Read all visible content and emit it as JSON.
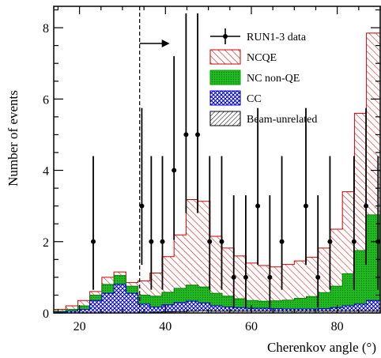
{
  "chart_data": {
    "type": "histogram",
    "xlabel": "Cherenkov angle (°)",
    "ylabel": "Number of events",
    "xlim": [
      14,
      90
    ],
    "ylim": [
      0,
      8.6
    ],
    "x_ticks": [
      20,
      40,
      60,
      80
    ],
    "y_ticks": [
      0,
      2,
      4,
      6,
      8
    ],
    "bin_edges": [
      14,
      16.8,
      19.6,
      22.4,
      25.2,
      28,
      30.8,
      33.6,
      36.4,
      39.2,
      42,
      44.8,
      47.6,
      50.4,
      53.2,
      56,
      58.8,
      61.6,
      64.4,
      67.2,
      70,
      72.8,
      75.6,
      78.4,
      81.2,
      84,
      86.8,
      90
    ],
    "cut_line": {
      "x": 34,
      "direction": "right"
    },
    "stack": [
      {
        "name": "Beam-unrelated",
        "color": "#000000",
        "pattern": "diag-black",
        "values": [
          0,
          0,
          0,
          0,
          0,
          0,
          0,
          0,
          0.02,
          0.03,
          0.04,
          0.05,
          0.06,
          0.05,
          0.05,
          0.05,
          0.05,
          0.05,
          0.05,
          0.05,
          0.05,
          0.05,
          0.05,
          0.05,
          0.05,
          0.05,
          0.05
        ]
      },
      {
        "name": "CC",
        "color": "#0000cc",
        "pattern": "crosshatch-blue",
        "values": [
          0.02,
          0.05,
          0.1,
          0.35,
          0.55,
          0.8,
          0.55,
          0.25,
          0.15,
          0.2,
          0.25,
          0.28,
          0.22,
          0.15,
          0.12,
          0.1,
          0.08,
          0.08,
          0.07,
          0.06,
          0.06,
          0.06,
          0.07,
          0.1,
          0.15,
          0.2,
          0.3
        ]
      },
      {
        "name": "NC non-QE",
        "color": "#00a000",
        "pattern": "dots-green",
        "values": [
          0.03,
          0.05,
          0.1,
          0.15,
          0.25,
          0.25,
          0.2,
          0.25,
          0.3,
          0.35,
          0.4,
          0.45,
          0.45,
          0.35,
          0.3,
          0.25,
          0.22,
          0.2,
          0.22,
          0.25,
          0.3,
          0.35,
          0.45,
          0.6,
          0.9,
          1.5,
          2.4
        ]
      },
      {
        "name": "NCQE",
        "color": "#cc0000",
        "pattern": "diag-red",
        "values": [
          0.05,
          0.1,
          0.15,
          0.1,
          0.2,
          0.1,
          0.1,
          0.4,
          0.65,
          1.0,
          1.5,
          2.4,
          2.4,
          1.6,
          1.35,
          1.2,
          1.05,
          1.0,
          0.95,
          1.0,
          1.05,
          1.1,
          1.25,
          1.6,
          2.3,
          3.85,
          5.1
        ]
      }
    ],
    "data_series": {
      "name": "RUN1-3 data",
      "points": [
        {
          "x": 23.2,
          "y": 2,
          "err": [
            1.35,
            2.4
          ]
        },
        {
          "x": 34.5,
          "y": 3,
          "err": [
            1.65,
            2.75
          ]
        },
        {
          "x": 36.7,
          "y": 2,
          "err": [
            1.35,
            2.4
          ]
        },
        {
          "x": 39.3,
          "y": 2,
          "err": [
            1.35,
            2.4
          ]
        },
        {
          "x": 42,
          "y": 4,
          "err": [
            1.95,
            3.2
          ]
        },
        {
          "x": 44.8,
          "y": 5,
          "err": [
            2.2,
            3.4
          ]
        },
        {
          "x": 47.5,
          "y": 5,
          "err": [
            2.2,
            3.4
          ]
        },
        {
          "x": 50.3,
          "y": 2,
          "err": [
            1.35,
            2.4
          ]
        },
        {
          "x": 53.1,
          "y": 2,
          "err": [
            1.35,
            2.4
          ]
        },
        {
          "x": 55.9,
          "y": 1,
          "err": [
            0.85,
            2.3
          ]
        },
        {
          "x": 58.7,
          "y": 1,
          "err": [
            0.85,
            2.3
          ]
        },
        {
          "x": 61.5,
          "y": 3,
          "err": [
            1.65,
            2.75
          ]
        },
        {
          "x": 64.3,
          "y": 1,
          "err": [
            0.85,
            2.3
          ]
        },
        {
          "x": 67.1,
          "y": 2,
          "err": [
            1.35,
            2.4
          ]
        },
        {
          "x": 72.7,
          "y": 3,
          "err": [
            1.65,
            2.75
          ]
        },
        {
          "x": 75.5,
          "y": 1,
          "err": [
            0.85,
            2.3
          ]
        },
        {
          "x": 78.3,
          "y": 2,
          "err": [
            1.35,
            2.4
          ]
        },
        {
          "x": 83.9,
          "y": 2,
          "err": [
            1.35,
            2.4
          ]
        },
        {
          "x": 86.7,
          "y": 3,
          "err": [
            1.65,
            2.75
          ]
        },
        {
          "x": 89.5,
          "y": 2,
          "err": [
            1.35,
            2.4
          ]
        }
      ]
    },
    "legend": {
      "position": "top-right",
      "entries": [
        {
          "label": "RUN1-3 data",
          "kind": "data"
        },
        {
          "label": "NCQE",
          "kind": "fill",
          "pattern": "diag-red",
          "color": "#cc0000"
        },
        {
          "label": "NC non-QE",
          "kind": "fill",
          "pattern": "dots-green",
          "color": "#00a000"
        },
        {
          "label": "CC",
          "kind": "fill",
          "pattern": "crosshatch-blue",
          "color": "#0000cc"
        },
        {
          "label": "Beam-unrelated",
          "kind": "fill",
          "pattern": "diag-black",
          "color": "#000000"
        }
      ]
    }
  }
}
